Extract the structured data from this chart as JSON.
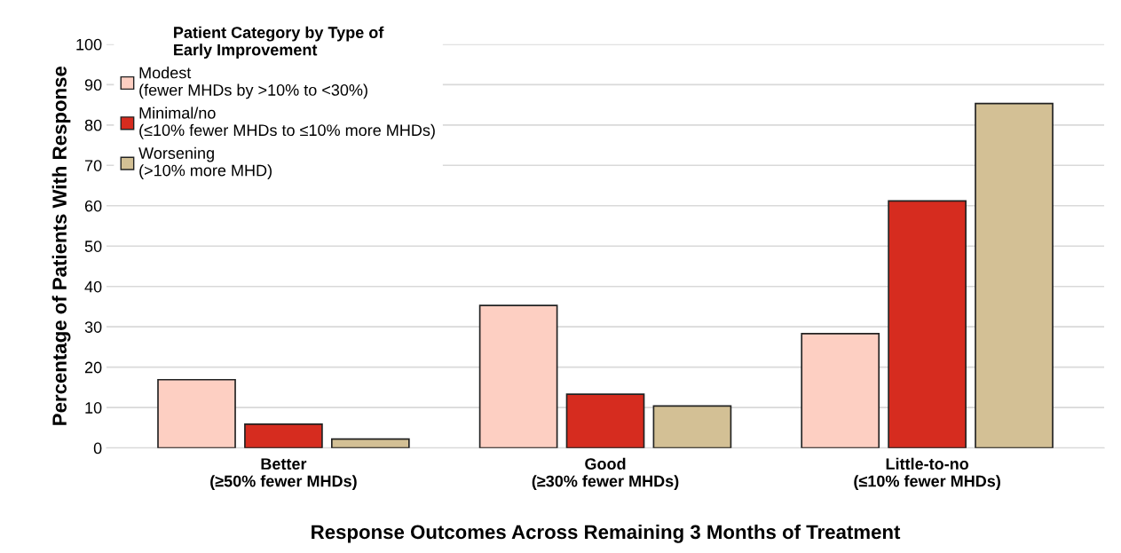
{
  "chart_data": {
    "type": "bar",
    "xlabel": "Response Outcomes Across Remaining 3 Months of Treatment",
    "ylabel": "Percentage of Patients With Response",
    "legend_title": "Patient Category by Type of\nEarly Improvement",
    "categories": [
      "Better\n(≥50% fewer MHDs)",
      "Good\n(≥30% fewer MHDs)",
      "Little-to-no\n(≤10% fewer MHDs)"
    ],
    "series": [
      {
        "name": "Modest\n(fewer MHDs by >10% to <30%)",
        "color": "#fdcfc2",
        "values": [
          16.9,
          35.3,
          28.3
        ]
      },
      {
        "name": "Minimal/no\n(≤10% fewer MHDs to ≤10% more MHDs)",
        "color": "#d62c1f",
        "values": [
          5.9,
          13.3,
          61.2
        ]
      },
      {
        "name": "Worsening\n(>10% more MHD)",
        "color": "#d3c095",
        "values": [
          2.2,
          10.4,
          85.3
        ]
      }
    ],
    "ylim": [
      0,
      100
    ],
    "yticks": [
      0,
      10,
      20,
      30,
      40,
      50,
      60,
      70,
      80,
      90,
      100
    ],
    "grid": "y",
    "legend": "top left"
  }
}
